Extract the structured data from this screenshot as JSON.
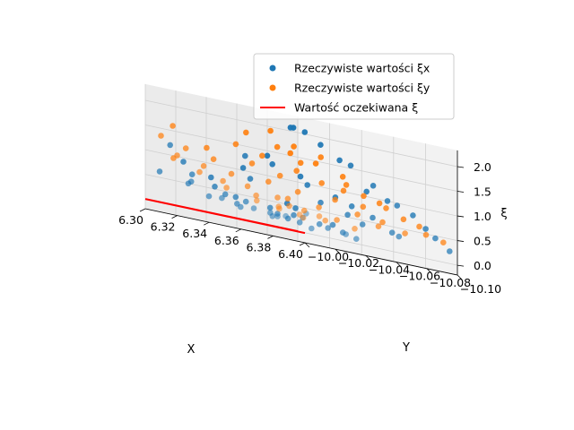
{
  "chart_data": {
    "type": "scatter",
    "projection": "3d",
    "xlabel": "X",
    "ylabel": "Y",
    "zlabel": "ξ",
    "xlim": [
      6.3,
      6.4
    ],
    "ylim": [
      -10.1,
      -10.0
    ],
    "zlim": [
      0.0,
      2.0
    ],
    "x_ticks": [
      "6.30",
      "6.32",
      "6.34",
      "6.36",
      "6.38",
      "6.40"
    ],
    "y_ticks": [
      "−10.10",
      "−10.08",
      "−10.06",
      "−10.04",
      "−10.02",
      "−10.00"
    ],
    "z_ticks": [
      "0.0",
      "0.5",
      "1.0",
      "1.5",
      "2.0"
    ],
    "grid": true,
    "legend": {
      "placement": "top-right",
      "entries": [
        {
          "label": "Rzeczywiste wartości ξx",
          "color": "#1f77b4",
          "marker": "dot"
        },
        {
          "label": "Rzeczywiste wartości ξy",
          "color": "#ff7f0e",
          "marker": "dot"
        },
        {
          "label": "Wartość oczekiwana ξ",
          "color": "#ff0000",
          "marker": "line"
        }
      ]
    },
    "series": [
      {
        "name": "Rzeczywiste wartości ξx",
        "color": "#1f77b4",
        "points": [
          [
            6.302,
            -10.005,
            2.08
          ],
          [
            6.305,
            -10.01,
            2.07
          ],
          [
            6.312,
            -10.008,
            2.04
          ],
          [
            6.32,
            -10.006,
            1.85
          ],
          [
            6.33,
            -10.004,
            1.62
          ],
          [
            6.336,
            -10.003,
            1.56
          ],
          [
            6.345,
            -10.002,
            1.1
          ],
          [
            6.352,
            -10.005,
            1.25
          ],
          [
            6.36,
            -10.004,
            1.0
          ],
          [
            6.368,
            -10.006,
            0.95
          ],
          [
            6.375,
            -10.003,
            0.82
          ],
          [
            6.382,
            -10.002,
            0.6
          ],
          [
            6.39,
            -10.004,
            0.45
          ],
          [
            6.398,
            -10.003,
            0.25
          ],
          [
            6.304,
            -10.04,
            1.05
          ],
          [
            6.31,
            -10.045,
            1.3
          ],
          [
            6.318,
            -10.05,
            0.86
          ],
          [
            6.322,
            -10.03,
            0.52
          ],
          [
            6.333,
            -10.036,
            0.46
          ],
          [
            6.34,
            -10.06,
            0.36
          ],
          [
            6.35,
            -10.055,
            0.31
          ],
          [
            6.356,
            -10.065,
            0.22
          ],
          [
            6.362,
            -10.042,
            0.28
          ],
          [
            6.37,
            -10.072,
            0.19
          ],
          [
            6.376,
            -10.05,
            0.17
          ],
          [
            6.385,
            -10.08,
            0.12
          ],
          [
            6.394,
            -10.06,
            0.1
          ],
          [
            6.3,
            -10.075,
            0.92
          ],
          [
            6.306,
            -10.09,
            1.2
          ],
          [
            6.315,
            -10.085,
            0.7
          ],
          [
            6.324,
            -10.095,
            0.55
          ],
          [
            6.331,
            -10.08,
            0.44
          ],
          [
            6.338,
            -10.098,
            0.33
          ],
          [
            6.346,
            -10.088,
            0.3
          ],
          [
            6.354,
            -10.094,
            0.25
          ],
          [
            6.364,
            -10.085,
            0.26
          ],
          [
            6.372,
            -10.092,
            0.2
          ],
          [
            6.38,
            -10.097,
            0.22
          ],
          [
            6.389,
            -10.09,
            0.3
          ],
          [
            6.396,
            -10.095,
            0.4
          ],
          [
            6.3,
            -10.02,
            1.4
          ],
          [
            6.308,
            -10.025,
            1.25
          ],
          [
            6.316,
            -10.015,
            1.12
          ],
          [
            6.327,
            -10.022,
            0.98
          ],
          [
            6.335,
            -10.012,
            0.85
          ],
          [
            6.343,
            -10.03,
            0.68
          ],
          [
            6.351,
            -10.018,
            0.74
          ],
          [
            6.358,
            -10.028,
            0.55
          ],
          [
            6.366,
            -10.02,
            0.6
          ],
          [
            6.374,
            -10.035,
            0.42
          ],
          [
            6.383,
            -10.025,
            0.38
          ],
          [
            6.392,
            -10.03,
            0.33
          ],
          [
            6.303,
            -10.06,
            0.72
          ],
          [
            6.313,
            -10.068,
            0.55
          ],
          [
            6.328,
            -10.07,
            0.43
          ],
          [
            6.342,
            -10.078,
            0.38
          ],
          [
            6.357,
            -10.073,
            0.27
          ],
          [
            6.369,
            -10.058,
            0.24
          ],
          [
            6.381,
            -10.065,
            0.2
          ],
          [
            6.397,
            -10.07,
            0.15
          ],
          [
            6.309,
            -10.1,
            0.62
          ],
          [
            6.326,
            -10.099,
            0.5
          ],
          [
            6.348,
            -10.1,
            0.35
          ],
          [
            6.367,
            -10.099,
            0.28
          ],
          [
            6.388,
            -10.1,
            0.26
          ]
        ]
      },
      {
        "name": "Rzeczywiste wartości ξy",
        "color": "#ff7f0e",
        "points": [
          [
            6.303,
            -10.008,
            1.55
          ],
          [
            6.309,
            -10.012,
            1.7
          ],
          [
            6.317,
            -10.006,
            1.45
          ],
          [
            6.324,
            -10.01,
            1.6
          ],
          [
            6.332,
            -10.004,
            1.3
          ],
          [
            6.339,
            -10.009,
            1.15
          ],
          [
            6.347,
            -10.006,
            1.0
          ],
          [
            6.355,
            -10.004,
            0.92
          ],
          [
            6.363,
            -10.008,
            0.85
          ],
          [
            6.371,
            -10.005,
            0.7
          ],
          [
            6.379,
            -10.003,
            0.62
          ],
          [
            6.387,
            -10.007,
            0.48
          ],
          [
            6.395,
            -10.004,
            0.4
          ],
          [
            6.301,
            -10.035,
            1.78
          ],
          [
            6.307,
            -10.048,
            1.5
          ],
          [
            6.314,
            -10.038,
            1.38
          ],
          [
            6.321,
            -10.052,
            1.18
          ],
          [
            6.329,
            -10.042,
            1.05
          ],
          [
            6.337,
            -10.058,
            0.88
          ],
          [
            6.344,
            -10.046,
            0.8
          ],
          [
            6.353,
            -10.062,
            0.62
          ],
          [
            6.361,
            -10.05,
            0.58
          ],
          [
            6.369,
            -10.068,
            0.45
          ],
          [
            6.377,
            -10.055,
            0.4
          ],
          [
            6.386,
            -10.072,
            0.34
          ],
          [
            6.393,
            -10.06,
            0.3
          ],
          [
            6.3,
            -10.082,
            1.6
          ],
          [
            6.306,
            -10.096,
            1.35
          ],
          [
            6.312,
            -10.086,
            1.2
          ],
          [
            6.319,
            -10.099,
            1.02
          ],
          [
            6.327,
            -10.09,
            0.92
          ],
          [
            6.334,
            -10.1,
            0.78
          ],
          [
            6.341,
            -10.092,
            0.7
          ],
          [
            6.349,
            -10.098,
            0.58
          ],
          [
            6.358,
            -10.088,
            0.55
          ],
          [
            6.366,
            -10.096,
            0.45
          ],
          [
            6.374,
            -10.09,
            0.42
          ],
          [
            6.383,
            -10.099,
            0.38
          ],
          [
            6.391,
            -10.094,
            0.35
          ],
          [
            6.399,
            -10.1,
            0.3
          ],
          [
            6.302,
            -10.02,
            1.92
          ],
          [
            6.311,
            -10.025,
            1.62
          ],
          [
            6.319,
            -10.018,
            1.4
          ],
          [
            6.326,
            -10.028,
            1.22
          ],
          [
            6.336,
            -10.022,
            1.08
          ],
          [
            6.343,
            -10.015,
            1.02
          ],
          [
            6.352,
            -10.03,
            0.8
          ],
          [
            6.36,
            -10.02,
            0.78
          ],
          [
            6.368,
            -10.032,
            0.6
          ],
          [
            6.376,
            -10.024,
            0.55
          ],
          [
            6.384,
            -10.035,
            0.45
          ],
          [
            6.392,
            -10.026,
            0.42
          ],
          [
            6.305,
            -10.065,
            1.3
          ],
          [
            6.316,
            -10.072,
            1.1
          ],
          [
            6.331,
            -10.076,
            0.88
          ],
          [
            6.345,
            -10.08,
            0.7
          ],
          [
            6.359,
            -10.075,
            0.6
          ],
          [
            6.373,
            -10.082,
            0.48
          ],
          [
            6.388,
            -10.078,
            0.4
          ],
          [
            6.31,
            -10.092,
            0.95
          ]
        ]
      },
      {
        "name": "Wartość oczekiwana ξ",
        "color": "#ff0000",
        "type": "line",
        "points": [
          [
            6.3,
            -10.0,
            0
          ],
          [
            6.3,
            -10.1,
            0
          ],
          [
            6.4,
            -10.1,
            0
          ]
        ]
      }
    ]
  }
}
